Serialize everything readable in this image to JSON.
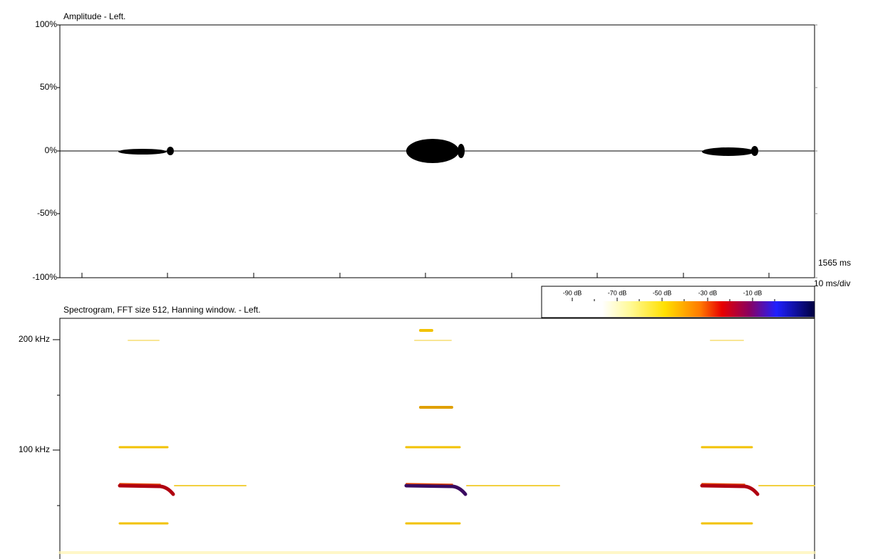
{
  "amplitude_panel": {
    "title": "Amplitude - Left.",
    "y_labels": [
      "100%",
      "50%",
      "0%",
      "-50%",
      "-100%"
    ],
    "time_span": "1565 ms",
    "time_scale": "10 ms/div"
  },
  "spectrogram_panel": {
    "title": "Spectrogram, FFT size 512, Hanning window. - Left.",
    "y_labels": [
      "200 kHz",
      "100 kHz"
    ],
    "color_scale": [
      "-90 dB",
      "-70 dB",
      "-50 dB",
      "-30 dB",
      "-10 dB"
    ]
  }
}
